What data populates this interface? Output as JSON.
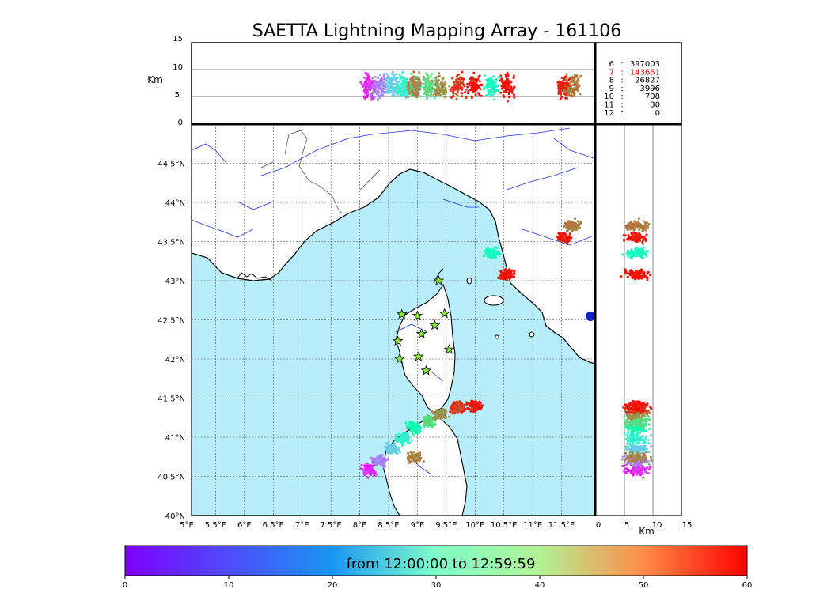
{
  "chart_data": {
    "type": "scatter",
    "title": "SAETTA Lightning Mapping Array - 161106",
    "map": {
      "lon_range": [
        5,
        12
      ],
      "lat_range": [
        40,
        45
      ],
      "x_ticks": [
        "5°E",
        "5.5°E",
        "6°E",
        "6.5°E",
        "7°E",
        "7.5°E",
        "8°E",
        "8.5°E",
        "9°E",
        "9.5°E",
        "10°E",
        "10.5°E",
        "11°E",
        "11.5°E"
      ],
      "y_ticks": [
        "40°N",
        "40.5°N",
        "41°N",
        "41.5°N",
        "42°N",
        "42.5°N",
        "43°N",
        "43.5°N",
        "44°N",
        "44.5°N"
      ],
      "grid": true,
      "sea_color": "#b8eef9",
      "stations": [
        [
          9.37,
          43.0
        ],
        [
          8.73,
          42.57
        ],
        [
          9.0,
          42.55
        ],
        [
          9.47,
          42.58
        ],
        [
          9.3,
          42.43
        ],
        [
          9.07,
          42.32
        ],
        [
          8.66,
          42.23
        ],
        [
          9.55,
          42.12
        ],
        [
          9.02,
          42.03
        ],
        [
          8.69,
          42.0
        ],
        [
          9.15,
          41.85
        ]
      ],
      "clusters": [
        {
          "lon": 8.15,
          "lat": 40.58,
          "minute": 3
        },
        {
          "lon": 8.35,
          "lat": 40.7,
          "minute": 10
        },
        {
          "lon": 8.55,
          "lat": 40.85,
          "minute": 18
        },
        {
          "lon": 8.75,
          "lat": 40.98,
          "minute": 24
        },
        {
          "lon": 8.95,
          "lat": 41.12,
          "minute": 31
        },
        {
          "lon": 9.2,
          "lat": 41.2,
          "minute": 40
        },
        {
          "lon": 9.4,
          "lat": 41.3,
          "minute": 48
        },
        {
          "lon": 9.7,
          "lat": 41.38,
          "minute": 56
        },
        {
          "lon": 10.0,
          "lat": 41.4,
          "minute": 59
        },
        {
          "lon": 8.95,
          "lat": 40.75,
          "minute": 50
        },
        {
          "lon": 11.55,
          "lat": 43.55,
          "minute": 58
        },
        {
          "lon": 11.7,
          "lat": 43.7,
          "minute": 50
        },
        {
          "lon": 10.55,
          "lat": 43.08,
          "minute": 59
        },
        {
          "lon": 10.3,
          "lat": 43.35,
          "minute": 28
        }
      ]
    },
    "altitude_panel": {
      "ylabel": "Km",
      "y_ticks": [
        "0",
        "5",
        "10",
        "15"
      ],
      "ylim": [
        0,
        15
      ],
      "gridlines": [
        5,
        10
      ]
    },
    "lat_alt_panel": {
      "xlabel": "Km",
      "x_ticks": [
        "0",
        "5",
        "10",
        "15"
      ],
      "xlim": [
        0,
        15
      ],
      "gridlines": [
        5,
        10
      ]
    },
    "station_counts": [
      {
        "n": "6",
        "count": "397003",
        "highlight": false
      },
      {
        "n": "7",
        "count": "143651",
        "highlight": true
      },
      {
        "n": "8",
        "count": "26827",
        "highlight": false
      },
      {
        "n": "9",
        "count": "3996",
        "highlight": false
      },
      {
        "n": "10",
        "count": "708",
        "highlight": false
      },
      {
        "n": "11",
        "count": "30",
        "highlight": false
      },
      {
        "n": "12",
        "count": "0",
        "highlight": false
      }
    ],
    "colorbar": {
      "label": "from 12:00:00 to 12:59:59",
      "range": [
        0,
        60
      ],
      "ticks": [
        "0",
        "10",
        "20",
        "30",
        "40",
        "50",
        "60"
      ],
      "colormap": "rainbow"
    }
  }
}
